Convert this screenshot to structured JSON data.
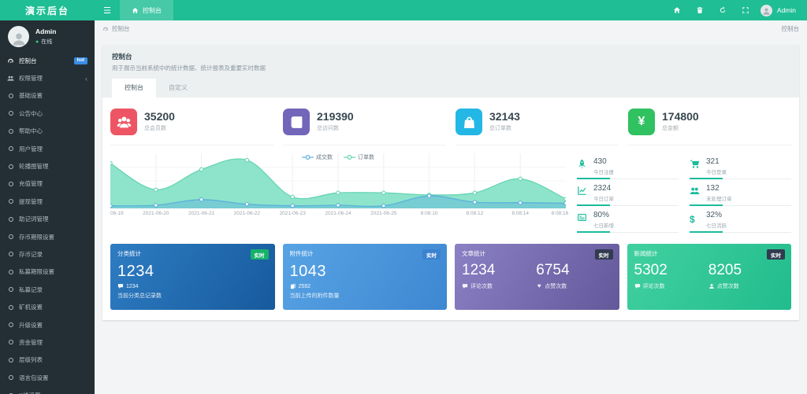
{
  "icons": {
    "hamburger": "☰",
    "yen": "¥",
    "dollar": "$",
    "heart": "♥",
    "chevron_left": "‹",
    "status_dot": "●"
  },
  "colors": {
    "topbar": "#1fbe95",
    "sidebar": "#232f35",
    "accent": "#1abc9c"
  },
  "topbar": {
    "logo": "演示后台",
    "tab": "控制台",
    "user": "Admin",
    "icons": [
      "home",
      "trash",
      "refresh",
      "fullscreen"
    ]
  },
  "sidebar": {
    "user": {
      "name": "Admin",
      "status": "在线"
    },
    "items": [
      {
        "icon": "dashboard",
        "label": "控制台",
        "badge": "hot",
        "active": true
      },
      {
        "icon": "users",
        "label": "权限管理",
        "arrow": true
      },
      {
        "icon": "circle",
        "label": "基础设置"
      },
      {
        "icon": "circle",
        "label": "公告中心"
      },
      {
        "icon": "circle",
        "label": "帮助中心"
      },
      {
        "icon": "circle",
        "label": "用户管理"
      },
      {
        "icon": "circle",
        "label": "轮播图管理"
      },
      {
        "icon": "circle",
        "label": "充值管理"
      },
      {
        "icon": "circle",
        "label": "提现管理"
      },
      {
        "icon": "circle",
        "label": "助记词管理"
      },
      {
        "icon": "circle",
        "label": "存币期限设置"
      },
      {
        "icon": "circle",
        "label": "存币记录"
      },
      {
        "icon": "circle",
        "label": "私募期限设置"
      },
      {
        "icon": "circle",
        "label": "私募记录"
      },
      {
        "icon": "circle",
        "label": "矿机设置"
      },
      {
        "icon": "circle",
        "label": "升级设置"
      },
      {
        "icon": "circle",
        "label": "资金管理"
      },
      {
        "icon": "circle",
        "label": "层级列表"
      },
      {
        "icon": "circle",
        "label": "语言包设置"
      },
      {
        "icon": "circle",
        "label": "K线设置"
      }
    ]
  },
  "breadcrumb": {
    "left": "控制台",
    "right": "控制台"
  },
  "panel": {
    "title": "控制台",
    "description": "用于展示当前系统中的统计数据、统计报表及重要实时数据",
    "tabs": [
      {
        "label": "控制台",
        "active": true
      },
      {
        "label": "自定义",
        "active": false
      }
    ]
  },
  "stats": [
    {
      "icon": "users-group",
      "color": "#ed5564",
      "value": "35200",
      "label": "总会员数"
    },
    {
      "icon": "book",
      "color": "#7266ba",
      "value": "219390",
      "label": "总访问数"
    },
    {
      "icon": "bag",
      "color": "#23b7e5",
      "value": "32143",
      "label": "总订单数"
    },
    {
      "icon": "yen",
      "color": "#30c161",
      "value": "174800",
      "label": "总金额"
    }
  ],
  "chart_data": {
    "type": "area",
    "title": "",
    "x": [
      "06-19",
      "2021-06-20",
      "2021-06-21",
      "2021-06-22",
      "2021-06-23",
      "2021-06-24",
      "2021-06-25",
      "8:08:10",
      "8:08:12",
      "8:08:14",
      "8:08:16"
    ],
    "series": [
      {
        "name": "成交数",
        "color": "#5ab1dc",
        "fill": "rgba(90,177,220,0.45)",
        "values": [
          2,
          3,
          14,
          5,
          2,
          3,
          2,
          21,
          9,
          8,
          7
        ]
      },
      {
        "name": "订单数",
        "color": "#66d4b2",
        "fill": "rgba(136,227,199,0.95)",
        "values": [
          84,
          33,
          72,
          90,
          19,
          27,
          27,
          23,
          27,
          54,
          15
        ]
      }
    ],
    "ylim": [
      0,
      100
    ],
    "grid": true,
    "legend_position": "top"
  },
  "mini_stats": [
    {
      "icon": "rocket",
      "value": "430",
      "label": "今日注册"
    },
    {
      "icon": "cart",
      "value": "321",
      "label": "今日登录"
    },
    {
      "icon": "chart-line",
      "value": "2324",
      "label": "今日订单"
    },
    {
      "icon": "users",
      "value": "132",
      "label": "未处理订单"
    },
    {
      "icon": "list",
      "value": "80%",
      "label": "七日新增"
    },
    {
      "icon": "dollar",
      "value": "32%",
      "label": "七日活跃"
    }
  ],
  "cards": [
    {
      "title": "分类统计",
      "badge": "实时",
      "badge_color": "#17b26a",
      "bg_from": "#2e7cc2",
      "bg_to": "#175a9d",
      "value": "1234",
      "sub_icon": "comment",
      "sub_value": "1234",
      "sub_label": "当前分类总记录数"
    },
    {
      "title": "附件统计",
      "badge": "实时",
      "badge_color": "#3b82d0",
      "bg_from": "#57a3e4",
      "bg_to": "#3e87d2",
      "value": "1043",
      "sub_icon": "files",
      "sub_value": "2592",
      "sub_label": "当前上传的附件数量"
    },
    {
      "title": "文章统计",
      "badge": "实时",
      "badge_color": "#313b4f",
      "bg_from": "#8a80c4",
      "bg_to": "#63589a",
      "metrics": [
        {
          "value": "1234",
          "icon": "comment",
          "label": "评论次数"
        },
        {
          "value": "6754",
          "icon": "heart",
          "label": "点赞次数"
        }
      ]
    },
    {
      "title": "新闻统计",
      "badge": "实时",
      "badge_color": "#313b4f",
      "bg_from": "#41d0a0",
      "bg_to": "#22bc8c",
      "metrics": [
        {
          "value": "5302",
          "icon": "comment",
          "label": "评论次数"
        },
        {
          "value": "8205",
          "icon": "person",
          "label": "点赞次数"
        }
      ]
    }
  ]
}
